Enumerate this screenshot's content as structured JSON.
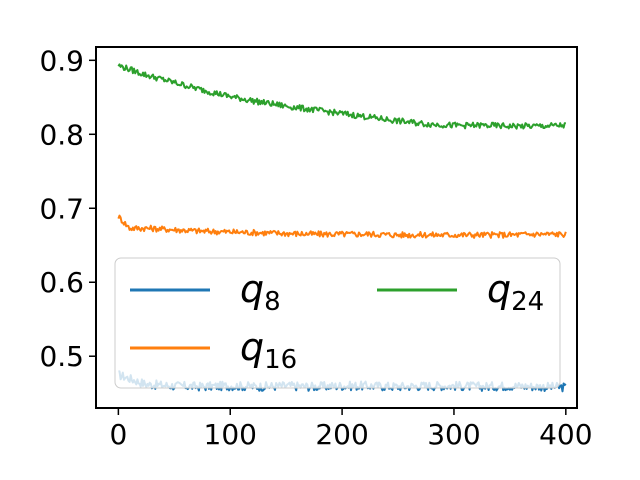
{
  "chart_data": {
    "type": "line",
    "title": "",
    "xlabel": "",
    "ylabel": "",
    "xlim": [
      -20,
      410
    ],
    "ylim": [
      0.43,
      0.918
    ],
    "xticks": [
      0,
      100,
      200,
      300,
      400
    ],
    "yticks": [
      0.5,
      0.6,
      0.7,
      0.8,
      0.9
    ],
    "xtick_labels": [
      "0",
      "100",
      "200",
      "300",
      "400"
    ],
    "ytick_labels": [
      "0.5",
      "0.6",
      "0.7",
      "0.8",
      "0.9"
    ],
    "grid": false,
    "legend": {
      "placement": "lower-center",
      "columns": 2,
      "entries": [
        {
          "base": "q",
          "sub": "8",
          "color": "#1f77b4"
        },
        {
          "base": "q",
          "sub": "24",
          "color": "#2ca02c"
        },
        {
          "base": "q",
          "sub": "16",
          "color": "#ff7f0e"
        }
      ]
    },
    "series": [
      {
        "color": "#1f77b4",
        "x": [
          0,
          25,
          50,
          75,
          100,
          125,
          150,
          175,
          200,
          225,
          250,
          275,
          300,
          325,
          350,
          375,
          400
        ],
        "y": [
          0.475,
          0.462,
          0.46,
          0.459,
          0.46,
          0.459,
          0.46,
          0.459,
          0.46,
          0.46,
          0.459,
          0.46,
          0.46,
          0.459,
          0.46,
          0.459,
          0.458
        ]
      },
      {
        "color": "#ff7f0e",
        "x": [
          0,
          10,
          25,
          50,
          75,
          100,
          125,
          150,
          175,
          200,
          225,
          250,
          275,
          300,
          325,
          350,
          375,
          400
        ],
        "y": [
          0.689,
          0.673,
          0.673,
          0.671,
          0.669,
          0.668,
          0.667,
          0.666,
          0.665,
          0.665,
          0.665,
          0.664,
          0.664,
          0.664,
          0.664,
          0.664,
          0.665,
          0.665
        ]
      },
      {
        "color": "#2ca02c",
        "x": [
          0,
          25,
          50,
          75,
          100,
          125,
          150,
          175,
          200,
          225,
          250,
          275,
          300,
          325,
          350,
          375,
          400
        ],
        "y": [
          0.893,
          0.88,
          0.87,
          0.86,
          0.851,
          0.844,
          0.838,
          0.833,
          0.828,
          0.823,
          0.818,
          0.814,
          0.812,
          0.812,
          0.811,
          0.811,
          0.812
        ]
      }
    ]
  }
}
